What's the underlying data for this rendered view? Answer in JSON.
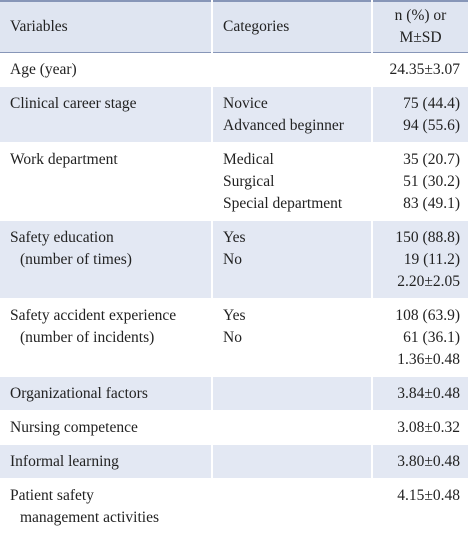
{
  "table": {
    "header": [
      "Variables",
      "Categories",
      [
        "n (%) or",
        "M±SD"
      ]
    ],
    "rows": [
      {
        "variable": [
          "Age (year)"
        ],
        "categories": [],
        "values": [
          "24.35±3.07"
        ]
      },
      {
        "variable": [
          "Clinical career stage"
        ],
        "categories": [
          "Novice",
          "Advanced beginner"
        ],
        "values": [
          "75 (44.4)",
          "94 (55.6)"
        ]
      },
      {
        "variable": [
          "Work department"
        ],
        "categories": [
          "Medical",
          "Surgical",
          "Special department"
        ],
        "values": [
          "35 (20.7)",
          "51 (30.2)",
          "83 (49.1)"
        ]
      },
      {
        "variable": [
          "Safety education",
          "(number of times)"
        ],
        "categories": [
          "Yes",
          "No"
        ],
        "values": [
          "150 (88.8)",
          "19 (11.2)",
          "2.20±2.05"
        ]
      },
      {
        "variable": [
          "Safety accident experience",
          "(number of incidents)"
        ],
        "categories": [
          "Yes",
          "No"
        ],
        "values": [
          "108 (63.9)",
          "61 (36.1)",
          "1.36±0.48"
        ]
      },
      {
        "variable": [
          "Organizational factors"
        ],
        "categories": [],
        "values": [
          "3.84±0.48"
        ]
      },
      {
        "variable": [
          "Nursing competence"
        ],
        "categories": [],
        "values": [
          "3.08±0.32"
        ]
      },
      {
        "variable": [
          "Informal learning"
        ],
        "categories": [],
        "values": [
          "3.80±0.48"
        ]
      },
      {
        "variable": [
          "Patient safety",
          "management activities"
        ],
        "categories": [],
        "values": [
          "4.15±0.48"
        ]
      }
    ]
  }
}
